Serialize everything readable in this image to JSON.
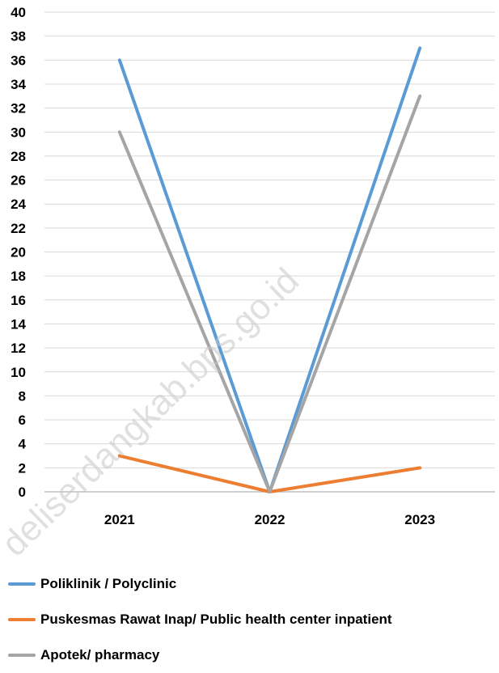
{
  "chart_data": {
    "type": "line",
    "title": "",
    "xlabel": "",
    "ylabel": "",
    "categories": [
      "2021",
      "2022",
      "2023"
    ],
    "ylim": [
      0,
      40
    ],
    "yticks": [
      0,
      2,
      4,
      6,
      8,
      10,
      12,
      14,
      16,
      18,
      20,
      22,
      24,
      26,
      28,
      30,
      32,
      34,
      36,
      38,
      40
    ],
    "grid": true,
    "legend_position": "bottom-left",
    "series": [
      {
        "name": "Poliklinik / Polyclinic",
        "color": "#5b9bd5",
        "values": [
          36,
          0,
          37
        ]
      },
      {
        "name": "Puskesmas Rawat Inap/ Public health center inpatient",
        "color": "#ed7d31",
        "values": [
          3,
          0,
          2
        ]
      },
      {
        "name": "Apotek/ pharmacy",
        "color": "#a5a5a5",
        "values": [
          30,
          0,
          33
        ]
      }
    ]
  },
  "watermark": "deliserdangkab.bps.go.id"
}
